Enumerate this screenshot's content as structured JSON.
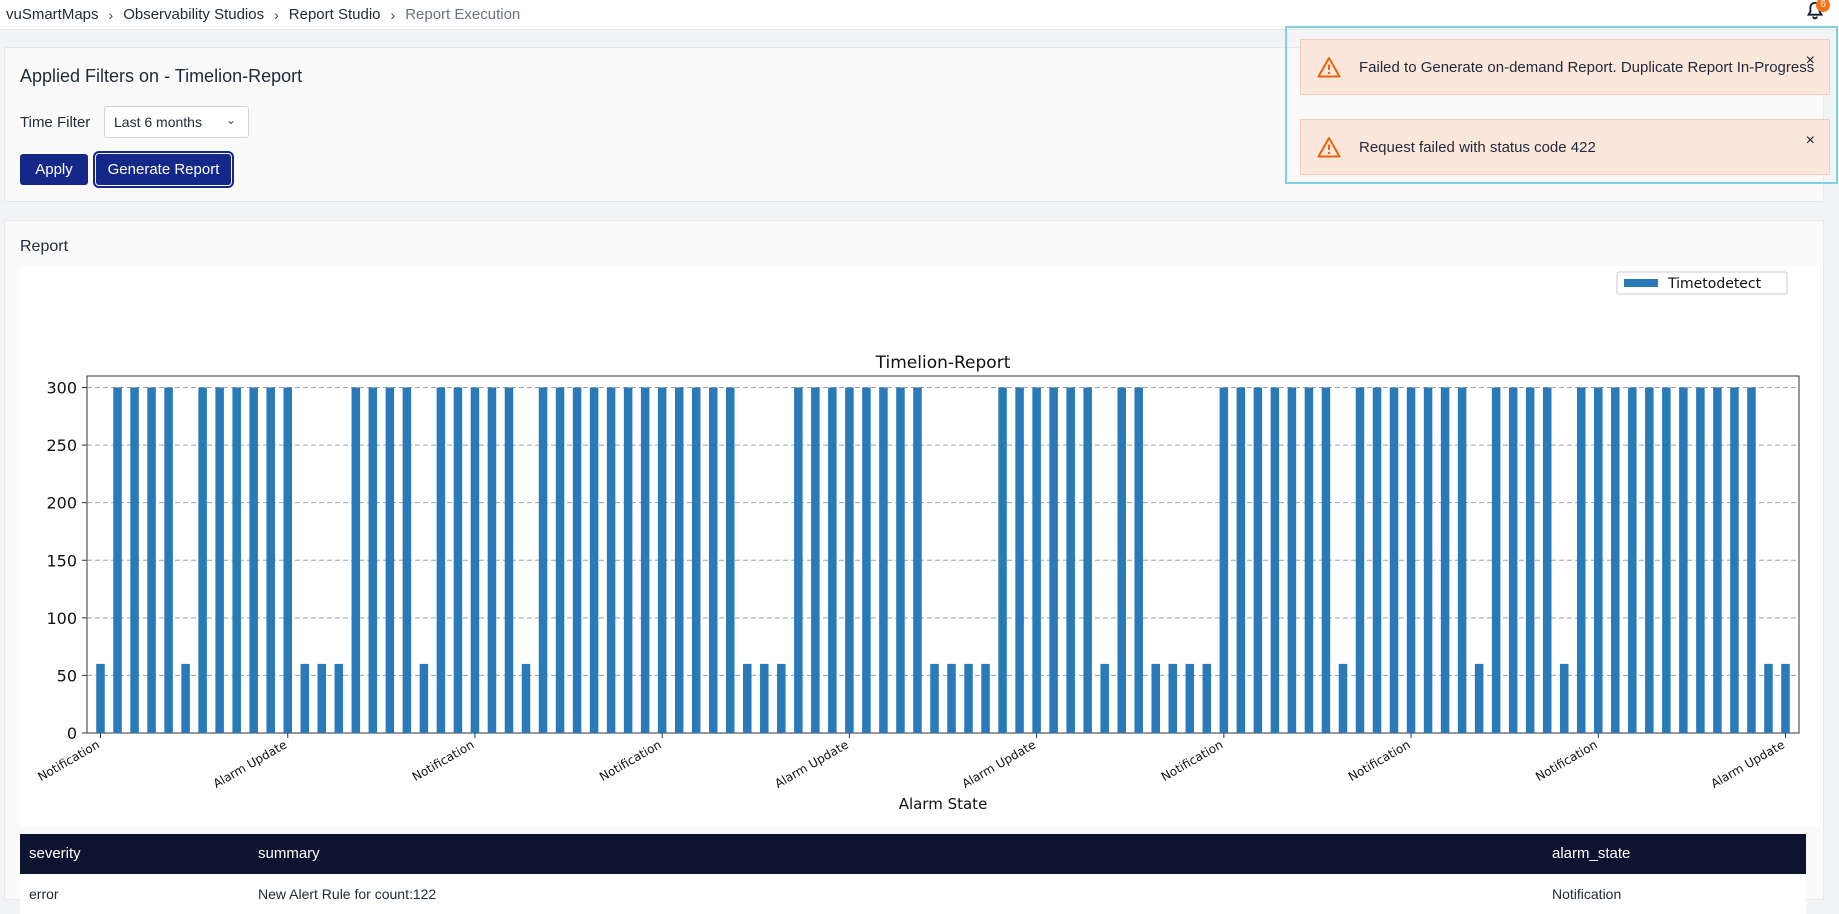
{
  "breadcrumb": {
    "items": [
      "vuSmartMaps",
      "Observability Studios",
      "Report Studio"
    ],
    "current": "Report Execution"
  },
  "notifications": {
    "badge": "6",
    "icon": "bell-icon"
  },
  "filters": {
    "title": "Applied Filters on - Timelion-Report",
    "time_label": "Time Filter",
    "time_value": "Last 6 months",
    "apply_label": "Apply",
    "generate_label": "Generate Report"
  },
  "report": {
    "title": "Report"
  },
  "toasts": [
    {
      "message": "Failed to Generate on-demand Report. Duplicate Report In-Progress",
      "icon": "warning-icon",
      "close": "×"
    },
    {
      "message": "Request failed with status code 422",
      "icon": "warning-icon",
      "close": "×"
    }
  ],
  "table": {
    "columns": [
      "severity",
      "summary",
      "alarm_state"
    ],
    "rows": [
      [
        "error",
        "New Alert Rule for count:122",
        "Notification"
      ]
    ]
  },
  "colors": {
    "bar": "#2a7ab8",
    "primary_button": "#14288a",
    "toast_bg": "#fce7dd",
    "warning": "#e8630a",
    "table_header": "#0d1430"
  },
  "chart_data": {
    "type": "bar",
    "title": "Timelion-Report",
    "xlabel": "Alarm State",
    "ylabel": "",
    "ylim": [
      0,
      310
    ],
    "yticks": [
      0,
      50,
      100,
      150,
      200,
      250,
      300
    ],
    "legend": {
      "position": "top-right",
      "labels": [
        "Timetodetect"
      ]
    },
    "grid": "horizontal dashed",
    "xtick_labels": [
      "Notification",
      "Alarm Update",
      "Notification",
      "Notification",
      "Alarm Update",
      "Alarm Update",
      "Notification",
      "Notification",
      "Notification",
      "Alarm Update"
    ],
    "series": [
      {
        "name": "Timetodetect",
        "values": [
          60,
          300,
          300,
          300,
          300,
          60,
          300,
          300,
          300,
          300,
          300,
          300,
          60,
          60,
          60,
          300,
          300,
          300,
          300,
          60,
          300,
          300,
          300,
          300,
          300,
          60,
          300,
          300,
          300,
          300,
          300,
          300,
          300,
          300,
          300,
          300,
          300,
          300,
          60,
          60,
          60,
          300,
          300,
          300,
          300,
          300,
          300,
          300,
          300,
          60,
          60,
          60,
          60,
          300,
          300,
          300,
          300,
          300,
          300,
          60,
          300,
          300,
          60,
          60,
          60,
          60,
          300,
          300,
          300,
          300,
          300,
          300,
          300,
          60,
          300,
          300,
          300,
          300,
          300,
          300,
          300,
          60,
          300,
          300,
          300,
          300,
          60,
          300,
          300,
          300,
          300,
          300,
          300,
          300,
          300,
          300,
          300,
          300,
          60,
          60
        ]
      }
    ]
  }
}
